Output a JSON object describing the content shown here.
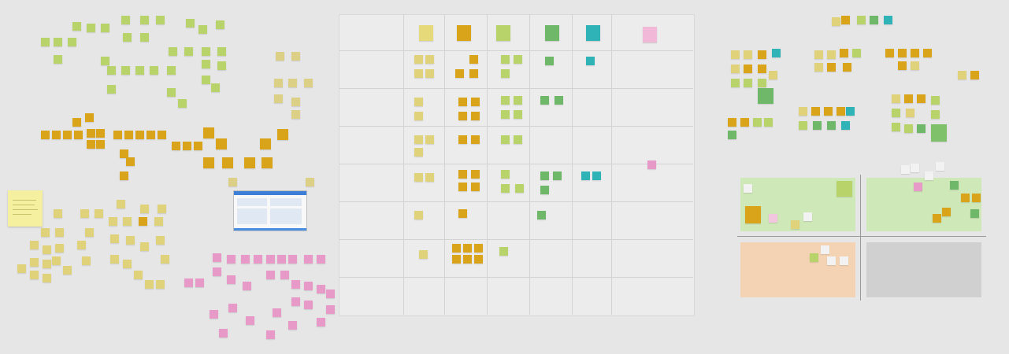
{
  "board": {
    "title": "",
    "colors": {
      "background": "#e6e6e6",
      "lime": "#b7d36a",
      "green": "#7fc06a",
      "gold": "#d9a41a",
      "yellow": "#e0d27a",
      "pink": "#e79ac7",
      "teal": "#2fb3b6",
      "tan": "#dccf86",
      "quadrant_green": "#cfe8b8",
      "quadrant_peach": "#f3d3b3",
      "quadrant_gray": "#d0d0d0"
    }
  },
  "matrix": {
    "columns": [
      {
        "color": "#e6d97a",
        "text": ""
      },
      {
        "color": "#d9a41a",
        "text": ""
      },
      {
        "color": "#b7d36a",
        "text": ""
      },
      {
        "color": "#6fb86a",
        "text": ""
      },
      {
        "color": "#2fb3b6",
        "text": ""
      },
      {
        "color": "#e79ac7",
        "text": ""
      }
    ],
    "rows": [
      "",
      "",
      "",
      "",
      "",
      "",
      ""
    ]
  },
  "right": {
    "headline": "",
    "sections": [
      "",
      "",
      "",
      "",
      "",
      "",
      ""
    ]
  },
  "icons": {
    "screenshot": "app-window-thumbnail-icon",
    "big_note": "sticky-note-icon"
  }
}
